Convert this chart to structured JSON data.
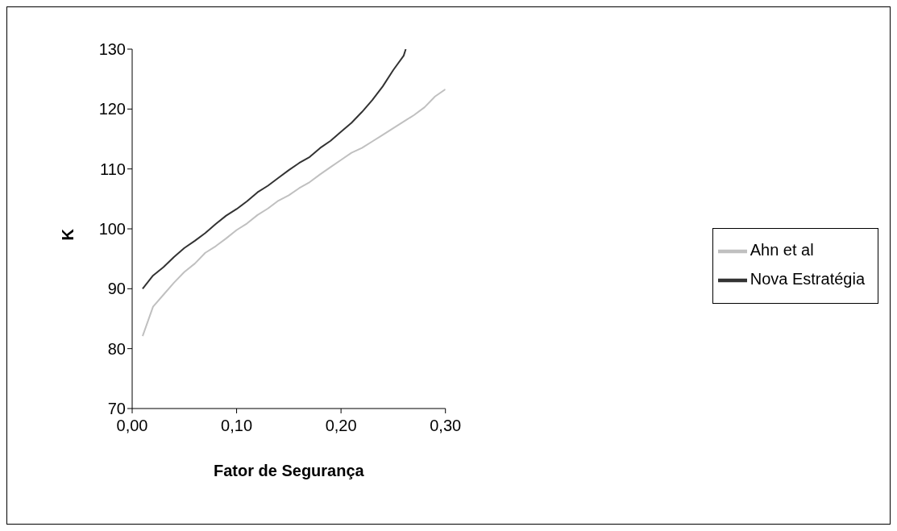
{
  "chart_data": {
    "type": "line",
    "xlabel": "Fator de Segurança",
    "ylabel": "K",
    "xlim": [
      0,
      0.3
    ],
    "xticks": [
      {
        "value": 0,
        "label": "0,00"
      },
      {
        "value": 0.1,
        "label": "0,10"
      },
      {
        "value": 0.2,
        "label": "0,20"
      },
      {
        "value": 0.3,
        "label": "0,30"
      }
    ],
    "ylim": [
      70,
      130
    ],
    "yticks": [
      70,
      80,
      90,
      100,
      110,
      120,
      130
    ],
    "grid": false,
    "legend": "right",
    "marker": "none",
    "line_style": "solid",
    "series": [
      {
        "name": "Nova Estratégia",
        "color": "#333333",
        "x": [
          0.01,
          0.02,
          0.03,
          0.04,
          0.05,
          0.06,
          0.07,
          0.08,
          0.09,
          0.1,
          0.11,
          0.12,
          0.13,
          0.14,
          0.15,
          0.16,
          0.17,
          0.18,
          0.19,
          0.2,
          0.21,
          0.22,
          0.23,
          0.24,
          0.25,
          0.26,
          0.262
        ],
        "values": [
          90,
          92.2,
          93.6,
          95.3,
          96.8,
          98,
          99.3,
          100.8,
          102.2,
          103.3,
          104.6,
          106.1,
          107.2,
          108.5,
          109.8,
          111,
          112,
          113.5,
          114.7,
          116.2,
          117.7,
          119.5,
          121.5,
          123.8,
          126.5,
          128.9,
          130
        ]
      },
      {
        "name": "Ahn et al",
        "color": "#c0c0c0",
        "x": [
          0.01,
          0.02,
          0.03,
          0.04,
          0.05,
          0.06,
          0.07,
          0.08,
          0.09,
          0.1,
          0.11,
          0.12,
          0.13,
          0.14,
          0.15,
          0.16,
          0.17,
          0.18,
          0.19,
          0.2,
          0.21,
          0.22,
          0.23,
          0.24,
          0.25,
          0.26,
          0.27,
          0.28,
          0.29,
          0.3
        ],
        "values": [
          82.1,
          87,
          89,
          91,
          92.8,
          94.2,
          96,
          97.1,
          98.4,
          99.8,
          100.9,
          102.3,
          103.4,
          104.7,
          105.6,
          106.8,
          107.8,
          109.1,
          110.3,
          111.5,
          112.7,
          113.5,
          114.6,
          115.7,
          116.8,
          117.9,
          119,
          120.3,
          122.1,
          123.3
        ]
      }
    ]
  }
}
